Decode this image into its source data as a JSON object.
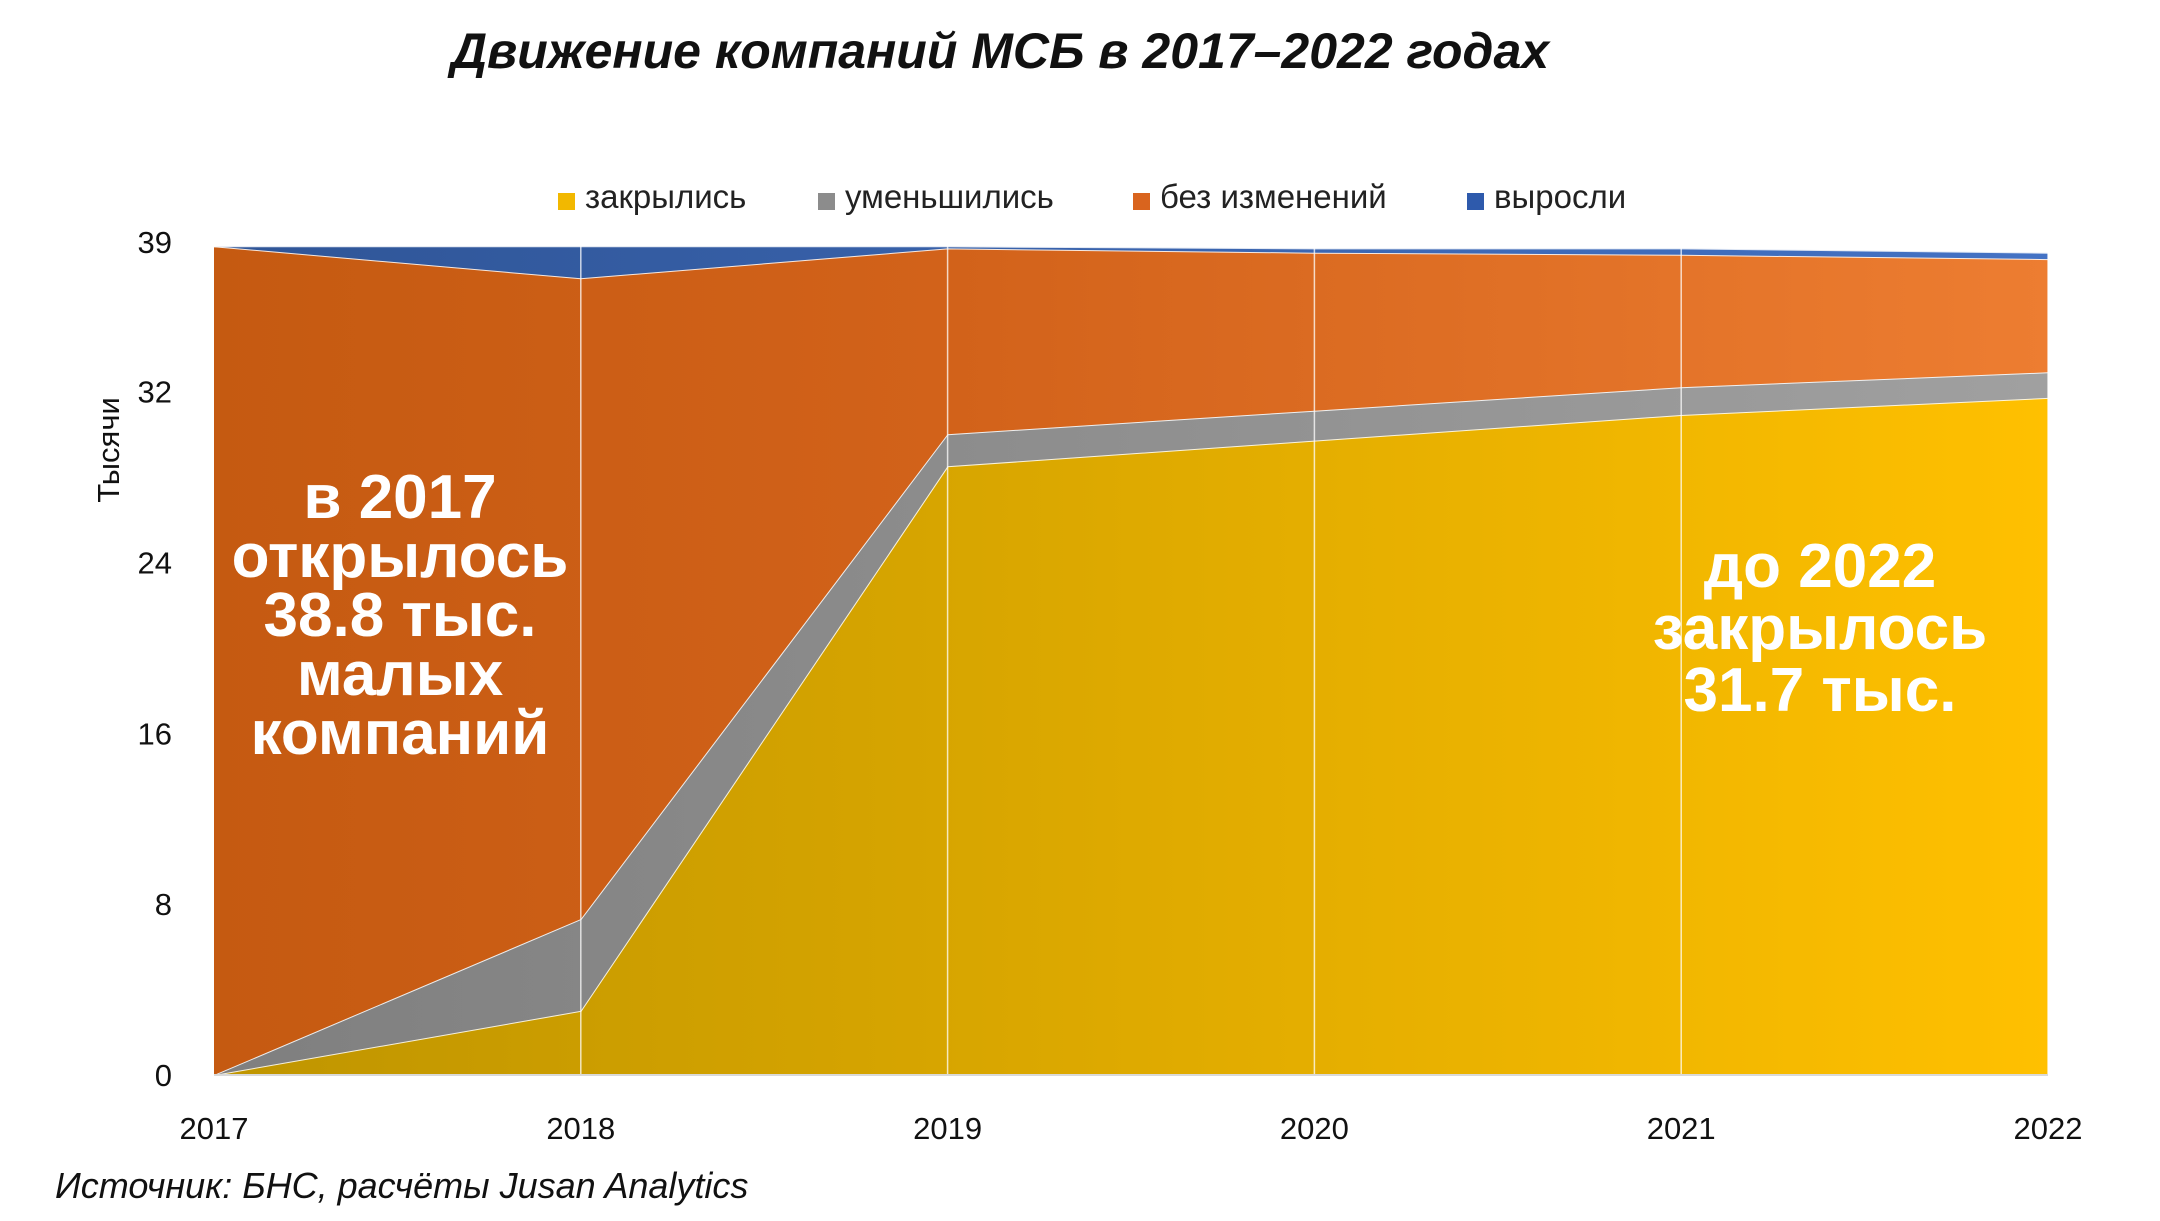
{
  "chart_data": {
    "type": "area",
    "stacked": true,
    "title": "Движение компаний МСБ в 2017–2022 годах",
    "ylabel": "Тысячи",
    "xlabel": "",
    "x": [
      "2017",
      "2018",
      "2019",
      "2020",
      "2021",
      "2022"
    ],
    "ylim": [
      0,
      39
    ],
    "yticks": [
      "0",
      "8",
      "16",
      "24",
      "32",
      "39"
    ],
    "grid": "vertical",
    "legend_position": "top",
    "series": [
      {
        "name": "закрылись",
        "values": [
          0,
          3.0,
          28.5,
          29.7,
          30.9,
          31.7
        ],
        "color": "#F2B800"
      },
      {
        "name": "уменьшились",
        "values": [
          0,
          4.3,
          1.5,
          1.4,
          1.3,
          1.2
        ],
        "color": "#8C8C8C"
      },
      {
        "name": "без изменений",
        "values": [
          38.8,
          30.0,
          8.7,
          7.4,
          6.2,
          5.3
        ],
        "color": "#D9641E"
      },
      {
        "name": "выросли",
        "values": [
          0,
          1.5,
          0.1,
          0.2,
          0.3,
          0.3
        ],
        "color": "#2E5AAC"
      }
    ],
    "annotations": [
      {
        "lines": [
          "в 2017",
          "открылось",
          "38.8 тыс.",
          "малых",
          "компаний"
        ]
      },
      {
        "lines": [
          "до 2022",
          "закрылось",
          "31.7 тыс."
        ]
      }
    ],
    "source": "Источник: БНС, расчёты Jusan Analytics"
  }
}
